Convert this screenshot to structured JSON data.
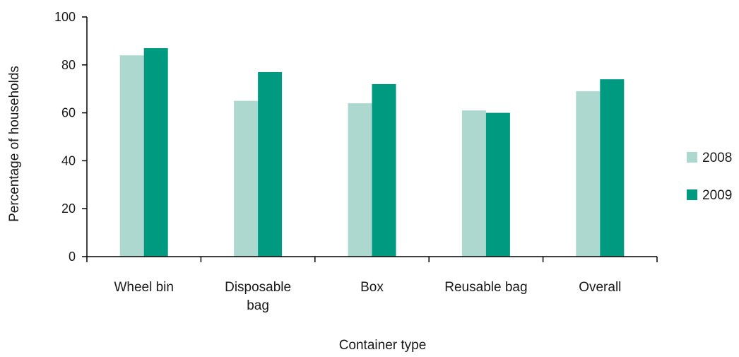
{
  "chart_data": {
    "type": "bar",
    "title": "",
    "xlabel": "Container type",
    "ylabel": "Percentage of households",
    "ylim": [
      0,
      100
    ],
    "yticks": [
      0,
      20,
      40,
      60,
      80,
      100
    ],
    "categories": [
      [
        "Wheel bin"
      ],
      [
        "Disposable",
        "bag"
      ],
      [
        "Box"
      ],
      [
        "Reusable bag"
      ],
      [
        "Overall"
      ]
    ],
    "series": [
      {
        "name": "2008",
        "color": "#acd8d0",
        "values": [
          84,
          65,
          64,
          61,
          69
        ]
      },
      {
        "name": "2009",
        "color": "#009a80",
        "values": [
          87,
          77,
          72,
          60,
          74
        ]
      }
    ],
    "legend_position": "right",
    "grid": false
  }
}
